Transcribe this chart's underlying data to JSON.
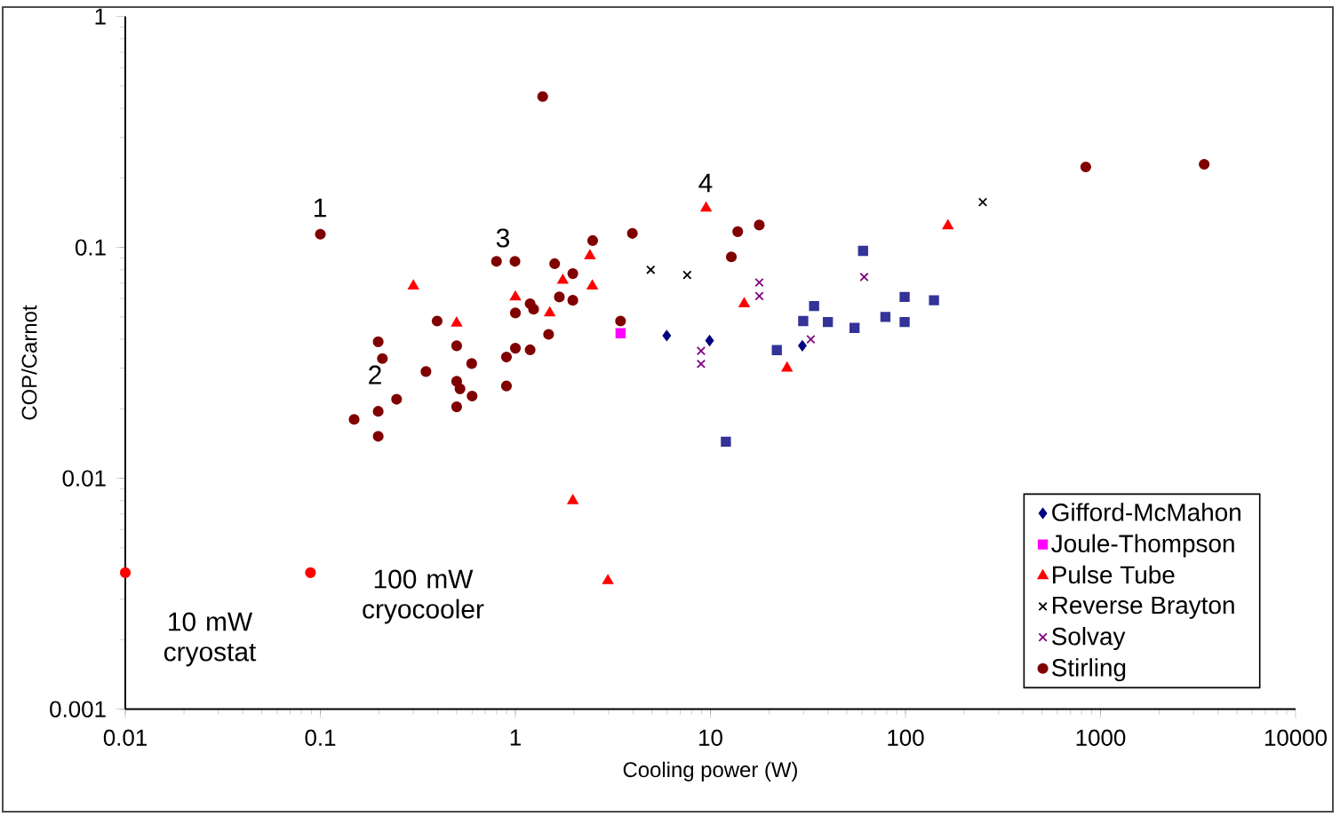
{
  "chart_data": {
    "type": "scatter",
    "xlabel": "Cooling power (W)",
    "ylabel": "COP/Carnot",
    "log": "xy",
    "grid": false,
    "legend": "bottom right",
    "xlim": [
      0.01,
      10000
    ],
    "ylim": [
      0.001,
      1
    ],
    "xticks": [
      0.01,
      0.1,
      1,
      10,
      100,
      1000,
      10000
    ],
    "yticks": [
      0.001,
      0.01,
      0.1,
      1
    ],
    "annotations": [
      "1",
      "2",
      "3",
      "4",
      "10 mW cryostat",
      "100 mW cryocooler"
    ],
    "series": [
      {
        "name": "Gifford-McMahon",
        "color": "#000080",
        "marker": "diamond",
        "x": [
          5.97,
          9.9,
          29.6
        ],
        "values": [
          0.0415,
          0.0395,
          0.0375
        ]
      },
      {
        "name": "Joule-Thompson",
        "color": "#ff00ff",
        "marker": "square",
        "x": [
          3.46
        ],
        "values": [
          0.0425
        ]
      },
      {
        "name": "Pulse Tube",
        "color": "#ff0000",
        "marker": "triangle",
        "x": [
          0.3,
          0.5,
          1.0,
          1.5,
          1.75,
          2.41,
          2.48,
          9.5,
          14.9,
          24.7,
          165,
          1.97,
          2.98
        ],
        "values": [
          0.068,
          0.047,
          0.061,
          0.052,
          0.072,
          0.092,
          0.068,
          0.148,
          0.057,
          0.03,
          0.124,
          0.008,
          0.0036
        ]
      },
      {
        "name": "Reverse Brayton",
        "color": "#000000",
        "marker": "cross",
        "x": [
          4.94,
          7.6,
          249
        ],
        "values": [
          0.08,
          0.076,
          0.157
        ]
      },
      {
        "name": "Solvay",
        "color": "#800080",
        "marker": "cross",
        "x": [
          17.8,
          17.8,
          8.95,
          8.95,
          32.7,
          61.4
        ],
        "values": [
          0.0705,
          0.0616,
          0.0356,
          0.0313,
          0.04,
          0.0744
        ]
      },
      {
        "name": "Stirling",
        "color": "#800000",
        "marker": "circle",
        "x": [
          0.1,
          0.198,
          0.208,
          0.397,
          0.348,
          0.246,
          0.149,
          0.198,
          0.198,
          0.5,
          0.597,
          0.5,
          0.52,
          0.6,
          0.5,
          0.8,
          0.995,
          1.59,
          2.49,
          3.98,
          1.97,
          1.97,
          1.68,
          1.19,
          1.24,
          1.0,
          1.48,
          1.0,
          1.19,
          0.9,
          0.9,
          3.46,
          13.8,
          17.8,
          12.8,
          1.38,
          840,
          3400
        ],
        "values": [
          0.114,
          0.039,
          0.033,
          0.048,
          0.029,
          0.022,
          0.018,
          0.0195,
          0.0152,
          0.0375,
          0.0314,
          0.0263,
          0.0244,
          0.0227,
          0.0204,
          0.087,
          0.087,
          0.085,
          0.107,
          0.115,
          0.077,
          0.059,
          0.061,
          0.057,
          0.054,
          0.052,
          0.042,
          0.0366,
          0.036,
          0.0335,
          0.0251,
          0.048,
          0.117,
          0.125,
          0.091,
          0.45,
          0.223,
          0.229
        ]
      },
      {
        "color": "#333399",
        "marker": "square",
        "x": [
          12.0,
          21.9,
          29.9,
          34.0,
          40.0,
          54.8,
          60.6,
          78.9,
          99,
          99,
          140
        ],
        "values": [
          0.0144,
          0.0359,
          0.048,
          0.0557,
          0.0475,
          0.0448,
          0.0966,
          0.05,
          0.061,
          0.0475,
          0.059
        ]
      },
      {
        "color": "#ff0000",
        "marker": "circle",
        "x": [
          0.01,
          0.089
        ],
        "values": [
          0.0039,
          0.0039
        ]
      }
    ]
  }
}
